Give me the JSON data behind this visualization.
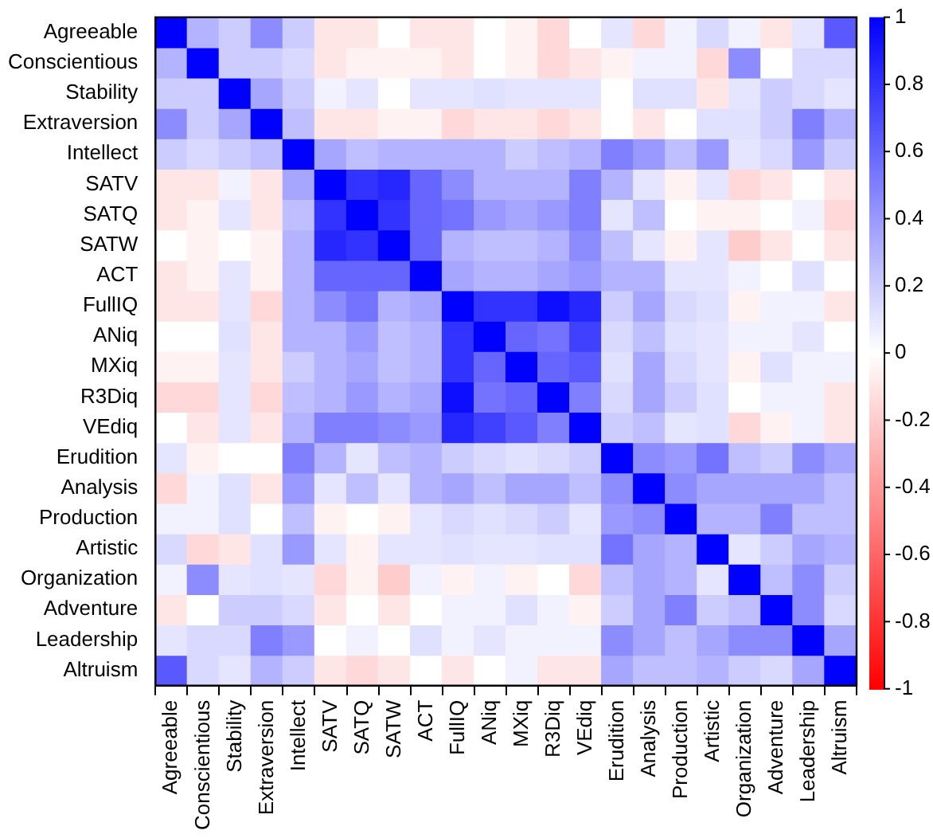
{
  "chart_data": {
    "type": "heatmap",
    "categories": [
      "Agreeable",
      "Conscientious",
      "Stability",
      "Extraversion",
      "Intellect",
      "SATV",
      "SATQ",
      "SATW",
      "ACT",
      "FullIQ",
      "ANiq",
      "MXiq",
      "R3Diq",
      "VEdiq",
      "Erudition",
      "Analysis",
      "Production",
      "Artistic",
      "Organization",
      "Adventure",
      "Leadership",
      "Altruism"
    ],
    "y_categories": [
      "Agreeable",
      "Conscientious",
      "Stability",
      "Extraversion",
      "Intellect",
      "SATV",
      "SATQ",
      "SATW",
      "ACT",
      "FullIQ",
      "ANiq",
      "MXiq",
      "R3Diq",
      "VEdiq",
      "Erudition",
      "Analysis",
      "Production",
      "Artistic",
      "Organization",
      "Adventure",
      "Leadership",
      "Altruism"
    ],
    "cells": [
      [
        1,
        0.3,
        0.2,
        0.45,
        0.2,
        -0.1,
        -0.1,
        0,
        -0.1,
        -0.1,
        0,
        -0.05,
        -0.15,
        0,
        0.1,
        -0.15,
        0.05,
        0.15,
        0.05,
        -0.1,
        0.1,
        0.65
      ],
      [
        0.3,
        1,
        0.2,
        0.2,
        0.15,
        -0.1,
        -0.05,
        -0.05,
        -0.05,
        -0.1,
        0,
        -0.05,
        -0.15,
        -0.1,
        -0.05,
        0.05,
        0.05,
        -0.15,
        0.45,
        0,
        0.15,
        0.15
      ],
      [
        0.2,
        0.2,
        1,
        0.35,
        0.2,
        0.05,
        0.1,
        0,
        0.1,
        0.1,
        0.12,
        0.1,
        0.1,
        0.1,
        0,
        0.12,
        0.12,
        -0.1,
        0.1,
        0.2,
        0.15,
        0.1
      ],
      [
        0.45,
        0.2,
        0.35,
        1,
        0.25,
        -0.1,
        -0.1,
        -0.05,
        -0.05,
        -0.15,
        -0.1,
        -0.1,
        -0.15,
        -0.1,
        0,
        -0.1,
        0,
        0.12,
        0.12,
        0.2,
        0.5,
        0.3
      ],
      [
        0.2,
        0.15,
        0.2,
        0.25,
        1,
        0.35,
        0.25,
        0.3,
        0.3,
        0.3,
        0.3,
        0.2,
        0.25,
        0.3,
        0.5,
        0.4,
        0.25,
        0.4,
        0.1,
        0.15,
        0.4,
        0.2
      ],
      [
        -0.1,
        -0.1,
        0.05,
        -0.1,
        0.35,
        1,
        0.8,
        0.85,
        0.6,
        0.45,
        0.3,
        0.3,
        0.3,
        0.5,
        0.3,
        0.1,
        -0.05,
        0.1,
        -0.15,
        -0.1,
        0,
        -0.1
      ],
      [
        -0.1,
        -0.05,
        0.1,
        -0.1,
        0.25,
        0.8,
        1,
        0.8,
        0.6,
        0.55,
        0.4,
        0.35,
        0.4,
        0.5,
        0.1,
        0.25,
        0,
        -0.05,
        -0.05,
        0,
        0.05,
        -0.15
      ],
      [
        0,
        -0.05,
        0,
        -0.05,
        0.3,
        0.85,
        0.8,
        1,
        0.6,
        0.3,
        0.25,
        0.25,
        0.3,
        0.45,
        0.25,
        0.1,
        -0.05,
        0.1,
        -0.2,
        -0.1,
        0,
        -0.1
      ],
      [
        -0.1,
        -0.05,
        0.1,
        -0.05,
        0.3,
        0.6,
        0.6,
        0.6,
        1,
        0.35,
        0.3,
        0.3,
        0.35,
        0.4,
        0.3,
        0.3,
        0.1,
        0.1,
        0.05,
        0,
        0.12,
        0
      ],
      [
        -0.1,
        -0.1,
        0.1,
        -0.15,
        0.3,
        0.45,
        0.55,
        0.3,
        0.35,
        1,
        0.8,
        0.8,
        0.95,
        0.85,
        0.2,
        0.35,
        0.15,
        0.12,
        -0.05,
        0.05,
        0.05,
        -0.1
      ],
      [
        0,
        0,
        0.12,
        -0.1,
        0.3,
        0.3,
        0.4,
        0.25,
        0.3,
        0.8,
        1,
        0.6,
        0.55,
        0.75,
        0.15,
        0.25,
        0.12,
        0.1,
        0.05,
        0.05,
        0.1,
        0
      ],
      [
        -0.05,
        -0.05,
        0.1,
        -0.1,
        0.2,
        0.3,
        0.35,
        0.25,
        0.3,
        0.8,
        0.6,
        1,
        0.6,
        0.65,
        0.12,
        0.35,
        0.15,
        0.1,
        -0.05,
        0.12,
        0.05,
        0.05
      ],
      [
        -0.15,
        -0.15,
        0.1,
        -0.15,
        0.25,
        0.3,
        0.4,
        0.3,
        0.35,
        0.95,
        0.55,
        0.6,
        1,
        0.5,
        0.15,
        0.35,
        0.2,
        0.12,
        0,
        0.05,
        0.05,
        -0.1
      ],
      [
        0,
        -0.1,
        0.1,
        -0.1,
        0.3,
        0.5,
        0.5,
        0.45,
        0.4,
        0.85,
        0.75,
        0.65,
        0.5,
        1,
        0.2,
        0.25,
        0.1,
        0.12,
        -0.15,
        -0.05,
        0.05,
        -0.1
      ],
      [
        0.1,
        -0.05,
        0,
        0,
        0.5,
        0.3,
        0.1,
        0.25,
        0.3,
        0.2,
        0.15,
        0.12,
        0.15,
        0.2,
        1,
        0.45,
        0.4,
        0.55,
        0.25,
        0.2,
        0.45,
        0.35
      ],
      [
        -0.15,
        0.05,
        0.12,
        -0.1,
        0.4,
        0.1,
        0.25,
        0.1,
        0.3,
        0.35,
        0.25,
        0.35,
        0.35,
        0.25,
        0.45,
        1,
        0.45,
        0.35,
        0.35,
        0.35,
        0.35,
        0.25
      ],
      [
        0.05,
        0.05,
        0.12,
        0,
        0.25,
        -0.05,
        0,
        -0.05,
        0.1,
        0.15,
        0.12,
        0.15,
        0.2,
        0.1,
        0.4,
        0.45,
        1,
        0.3,
        0.3,
        0.5,
        0.25,
        0.25
      ],
      [
        0.15,
        -0.15,
        -0.1,
        0.12,
        0.4,
        0.1,
        -0.05,
        0.1,
        0.1,
        0.12,
        0.1,
        0.1,
        0.12,
        0.12,
        0.55,
        0.35,
        0.3,
        1,
        0.1,
        0.2,
        0.35,
        0.3
      ],
      [
        0.05,
        0.45,
        0.1,
        0.12,
        0.1,
        -0.15,
        -0.05,
        -0.2,
        0.05,
        -0.05,
        0.05,
        -0.05,
        0,
        -0.15,
        0.25,
        0.35,
        0.3,
        0.1,
        1,
        0.25,
        0.45,
        0.2
      ],
      [
        -0.1,
        0,
        0.2,
        0.2,
        0.15,
        -0.1,
        0,
        -0.1,
        0,
        0.05,
        0.05,
        0.12,
        0.05,
        -0.05,
        0.2,
        0.35,
        0.5,
        0.2,
        0.25,
        1,
        0.45,
        0.15
      ],
      [
        0.1,
        0.15,
        0.15,
        0.5,
        0.4,
        0,
        0.05,
        0,
        0.12,
        0.05,
        0.1,
        0.05,
        0.05,
        0.05,
        0.45,
        0.35,
        0.25,
        0.35,
        0.45,
        0.45,
        1,
        0.35
      ],
      [
        0.65,
        0.15,
        0.1,
        0.3,
        0.2,
        -0.1,
        -0.15,
        -0.1,
        0,
        -0.1,
        0,
        0.05,
        -0.1,
        -0.1,
        0.35,
        0.25,
        0.25,
        0.3,
        0.2,
        0.15,
        0.35,
        1
      ]
    ],
    "clim": [
      -1,
      1
    ],
    "cticks": [
      -1,
      -0.8,
      -0.6,
      -0.4,
      -0.2,
      0,
      0.2,
      0.4,
      0.6,
      0.8,
      1
    ]
  }
}
